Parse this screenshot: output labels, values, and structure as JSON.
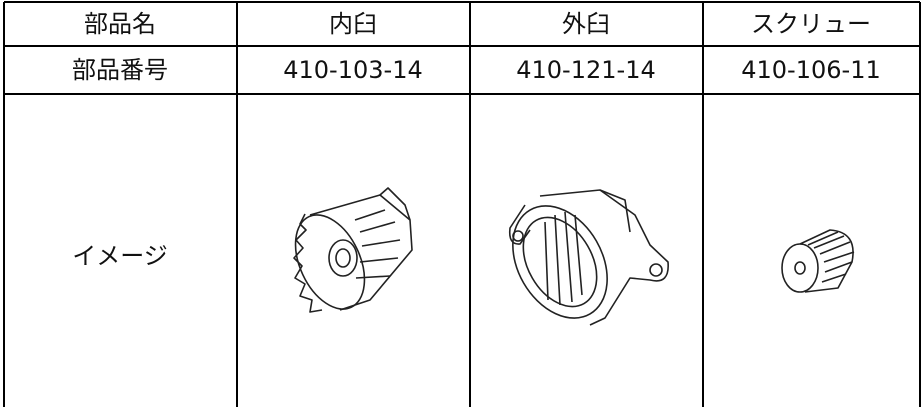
{
  "table": {
    "header": [
      "部品名",
      "内臼",
      "外臼",
      "スクリュー"
    ],
    "rows": [
      [
        "部品番号",
        "410-103-14",
        "410-121-14",
        "410-106-11"
      ],
      [
        "イメージ"
      ]
    ]
  }
}
